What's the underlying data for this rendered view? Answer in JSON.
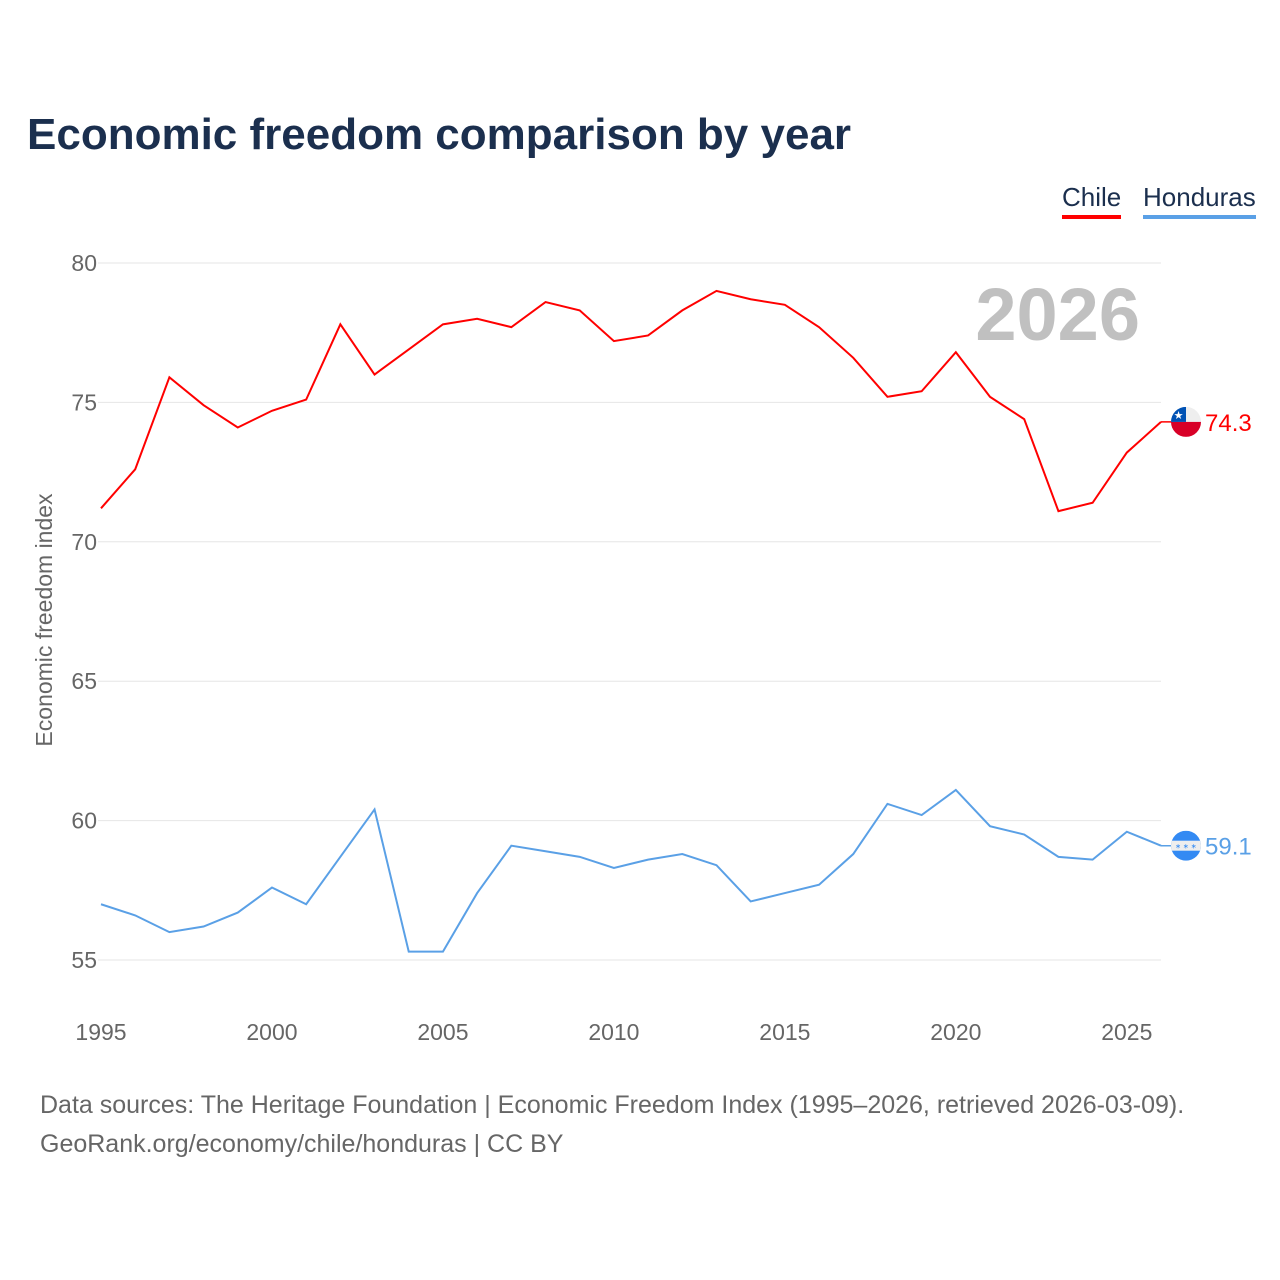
{
  "chart_data": {
    "type": "line",
    "title": "Economic freedom comparison by year",
    "xlabel": "",
    "ylabel": "Economic freedom index",
    "xlim": [
      1995,
      2026
    ],
    "ylim": [
      55,
      80
    ],
    "yticks": [
      80,
      75,
      70,
      65,
      60,
      55
    ],
    "xticks": [
      1995,
      2000,
      2005,
      2010,
      2015,
      2020,
      2025
    ],
    "grid": true,
    "legend_position": "top-right",
    "year_watermark": "2026",
    "x": [
      1995,
      1996,
      1997,
      1998,
      1999,
      2000,
      2001,
      2002,
      2003,
      2004,
      2005,
      2006,
      2007,
      2008,
      2009,
      2010,
      2011,
      2012,
      2013,
      2014,
      2015,
      2016,
      2017,
      2018,
      2019,
      2020,
      2021,
      2022,
      2023,
      2024,
      2025,
      2026
    ],
    "series": [
      {
        "name": "Chile",
        "color": "#ff0000",
        "end_label": "74.3",
        "values": [
          71.2,
          72.6,
          75.9,
          74.9,
          74.1,
          74.7,
          75.1,
          77.8,
          76.0,
          76.9,
          77.8,
          78.0,
          77.7,
          78.6,
          78.3,
          77.2,
          77.4,
          78.3,
          79.0,
          78.7,
          78.5,
          77.7,
          76.6,
          75.2,
          75.4,
          76.8,
          75.2,
          74.4,
          71.1,
          71.4,
          73.2,
          74.3
        ]
      },
      {
        "name": "Honduras",
        "color": "#5aa0e6",
        "end_label": "59.1",
        "values": [
          57.0,
          56.6,
          56.0,
          56.2,
          56.7,
          57.6,
          57.0,
          58.7,
          60.4,
          55.3,
          55.3,
          57.4,
          59.1,
          58.9,
          58.7,
          58.3,
          58.6,
          58.8,
          58.4,
          57.1,
          57.4,
          57.7,
          58.8,
          60.6,
          60.2,
          61.1,
          59.8,
          59.5,
          58.7,
          58.6,
          59.6,
          59.1
        ]
      }
    ]
  },
  "footer": {
    "line1": "Data sources: The Heritage Foundation | Economic Freedom Index (1995–2026, retrieved 2026-03-09).",
    "line2": "GeoRank.org/economy/chile/honduras | CC BY"
  }
}
